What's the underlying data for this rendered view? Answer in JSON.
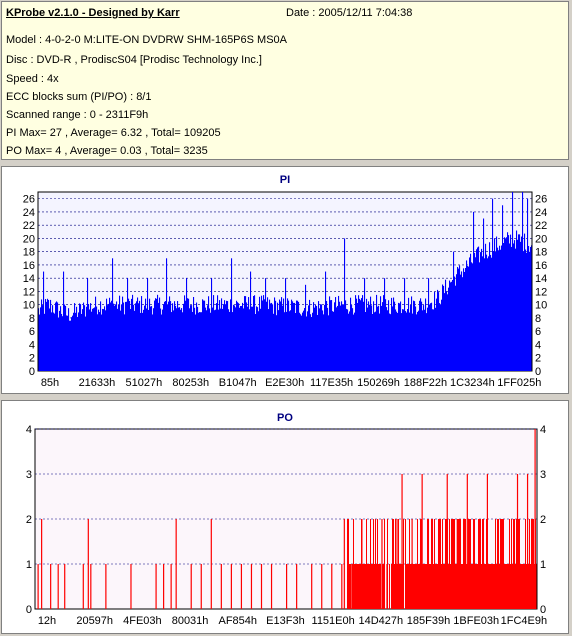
{
  "header": {
    "title": "KProbe v2.1.0 - Designed by Karr",
    "date": "Date : 2005/12/11 7:04:38",
    "model": "Model : 4-0-2-0 M:LITE-ON DVDRW SHM-165P6S MS0A",
    "disc": "Disc : DVD-R , ProdiscS04   [Prodisc Technology Inc.]",
    "speed": "Speed : 4x",
    "ecc": "ECC blocks sum (PI/PO) : 8/1",
    "range": "Scanned range : 0 - 2311F9h",
    "pi_stats": "PI Max= 27 , Average= 6.32 , Total= 109205",
    "po_stats": "PO Max= 4 , Average= 0.03 , Total= 3235"
  },
  "colors": {
    "pi": "#0000ff",
    "po": "#ff0000",
    "title": "#000080",
    "grid": "#000080"
  },
  "chart_data": [
    {
      "type": "bar",
      "title": "PI",
      "ylim": [
        0,
        27
      ],
      "yticks": [
        0,
        2,
        4,
        6,
        8,
        10,
        12,
        14,
        16,
        18,
        20,
        22,
        24,
        26
      ],
      "xticks": [
        "85h",
        "21633h",
        "51027h",
        "80253h",
        "B1047h",
        "E2E30h",
        "117E35h",
        "150269h",
        "188F22h",
        "1C3234h",
        "1FF025h"
      ],
      "grid": true,
      "profile": [
        [
          0,
          9
        ],
        [
          0.02,
          10
        ],
        [
          0.06,
          8.5
        ],
        [
          0.08,
          9
        ],
        [
          0.12,
          10
        ],
        [
          0.2,
          10
        ],
        [
          0.35,
          10
        ],
        [
          0.45,
          10
        ],
        [
          0.55,
          9.5
        ],
        [
          0.62,
          10
        ],
        [
          0.7,
          10
        ],
        [
          0.78,
          10
        ],
        [
          0.81,
          11
        ],
        [
          0.84,
          14
        ],
        [
          0.87,
          16
        ],
        [
          0.9,
          18
        ],
        [
          0.93,
          19
        ],
        [
          0.96,
          20
        ],
        [
          1.0,
          19
        ]
      ],
      "spikes": [
        [
          0.01,
          15
        ],
        [
          0.05,
          15
        ],
        [
          0.1,
          14
        ],
        [
          0.15,
          17
        ],
        [
          0.18,
          14
        ],
        [
          0.22,
          14
        ],
        [
          0.26,
          17
        ],
        [
          0.3,
          14
        ],
        [
          0.35,
          14
        ],
        [
          0.39,
          17
        ],
        [
          0.43,
          15
        ],
        [
          0.46,
          14
        ],
        [
          0.5,
          14
        ],
        [
          0.54,
          13
        ],
        [
          0.58,
          15
        ],
        [
          0.62,
          20
        ],
        [
          0.66,
          14
        ],
        [
          0.7,
          14
        ],
        [
          0.74,
          14
        ],
        [
          0.79,
          14
        ],
        [
          0.84,
          18
        ],
        [
          0.88,
          24
        ],
        [
          0.9,
          23
        ],
        [
          0.92,
          26
        ],
        [
          0.94,
          25
        ],
        [
          0.96,
          27
        ],
        [
          0.98,
          27
        ],
        [
          0.99,
          26
        ]
      ]
    },
    {
      "type": "bar",
      "title": "PO",
      "ylim": [
        0,
        4
      ],
      "yticks": [
        0,
        1,
        2,
        3,
        4
      ],
      "xticks": [
        "12h",
        "20597h",
        "4FE03h",
        "80031h",
        "AF854h",
        "E13F3h",
        "1151E0h",
        "14D427h",
        "185F39h",
        "1BFE03h",
        "1FC4E9h"
      ],
      "grid": true,
      "bars": [
        [
          0.005,
          1
        ],
        [
          0.012,
          2
        ],
        [
          0.03,
          1
        ],
        [
          0.045,
          1
        ],
        [
          0.058,
          1
        ],
        [
          0.095,
          1
        ],
        [
          0.105,
          2
        ],
        [
          0.11,
          1
        ],
        [
          0.14,
          1
        ],
        [
          0.19,
          1
        ],
        [
          0.24,
          1
        ],
        [
          0.255,
          1
        ],
        [
          0.27,
          1
        ],
        [
          0.28,
          2
        ],
        [
          0.31,
          1
        ],
        [
          0.33,
          1
        ],
        [
          0.35,
          2
        ],
        [
          0.37,
          1
        ],
        [
          0.39,
          1
        ],
        [
          0.41,
          1
        ],
        [
          0.43,
          1
        ],
        [
          0.45,
          1
        ],
        [
          0.47,
          1
        ],
        [
          0.5,
          1
        ],
        [
          0.52,
          1
        ],
        [
          0.55,
          1
        ],
        [
          0.57,
          1
        ],
        [
          0.59,
          1
        ],
        [
          0.61,
          1
        ],
        [
          0.615,
          2
        ],
        [
          0.63,
          1
        ],
        [
          0.65,
          2
        ],
        [
          0.67,
          1
        ],
        [
          0.68,
          1
        ],
        [
          0.69,
          2
        ],
        [
          0.7,
          1
        ],
        [
          0.71,
          1
        ],
        [
          0.72,
          2
        ],
        [
          0.73,
          3
        ],
        [
          0.75,
          2
        ],
        [
          0.77,
          3
        ],
        [
          0.79,
          2
        ],
        [
          0.82,
          3
        ],
        [
          0.84,
          2
        ],
        [
          0.86,
          3
        ],
        [
          0.9,
          3
        ],
        [
          0.93,
          2
        ],
        [
          0.96,
          3
        ],
        [
          0.98,
          3
        ],
        [
          0.995,
          4
        ]
      ]
    }
  ]
}
